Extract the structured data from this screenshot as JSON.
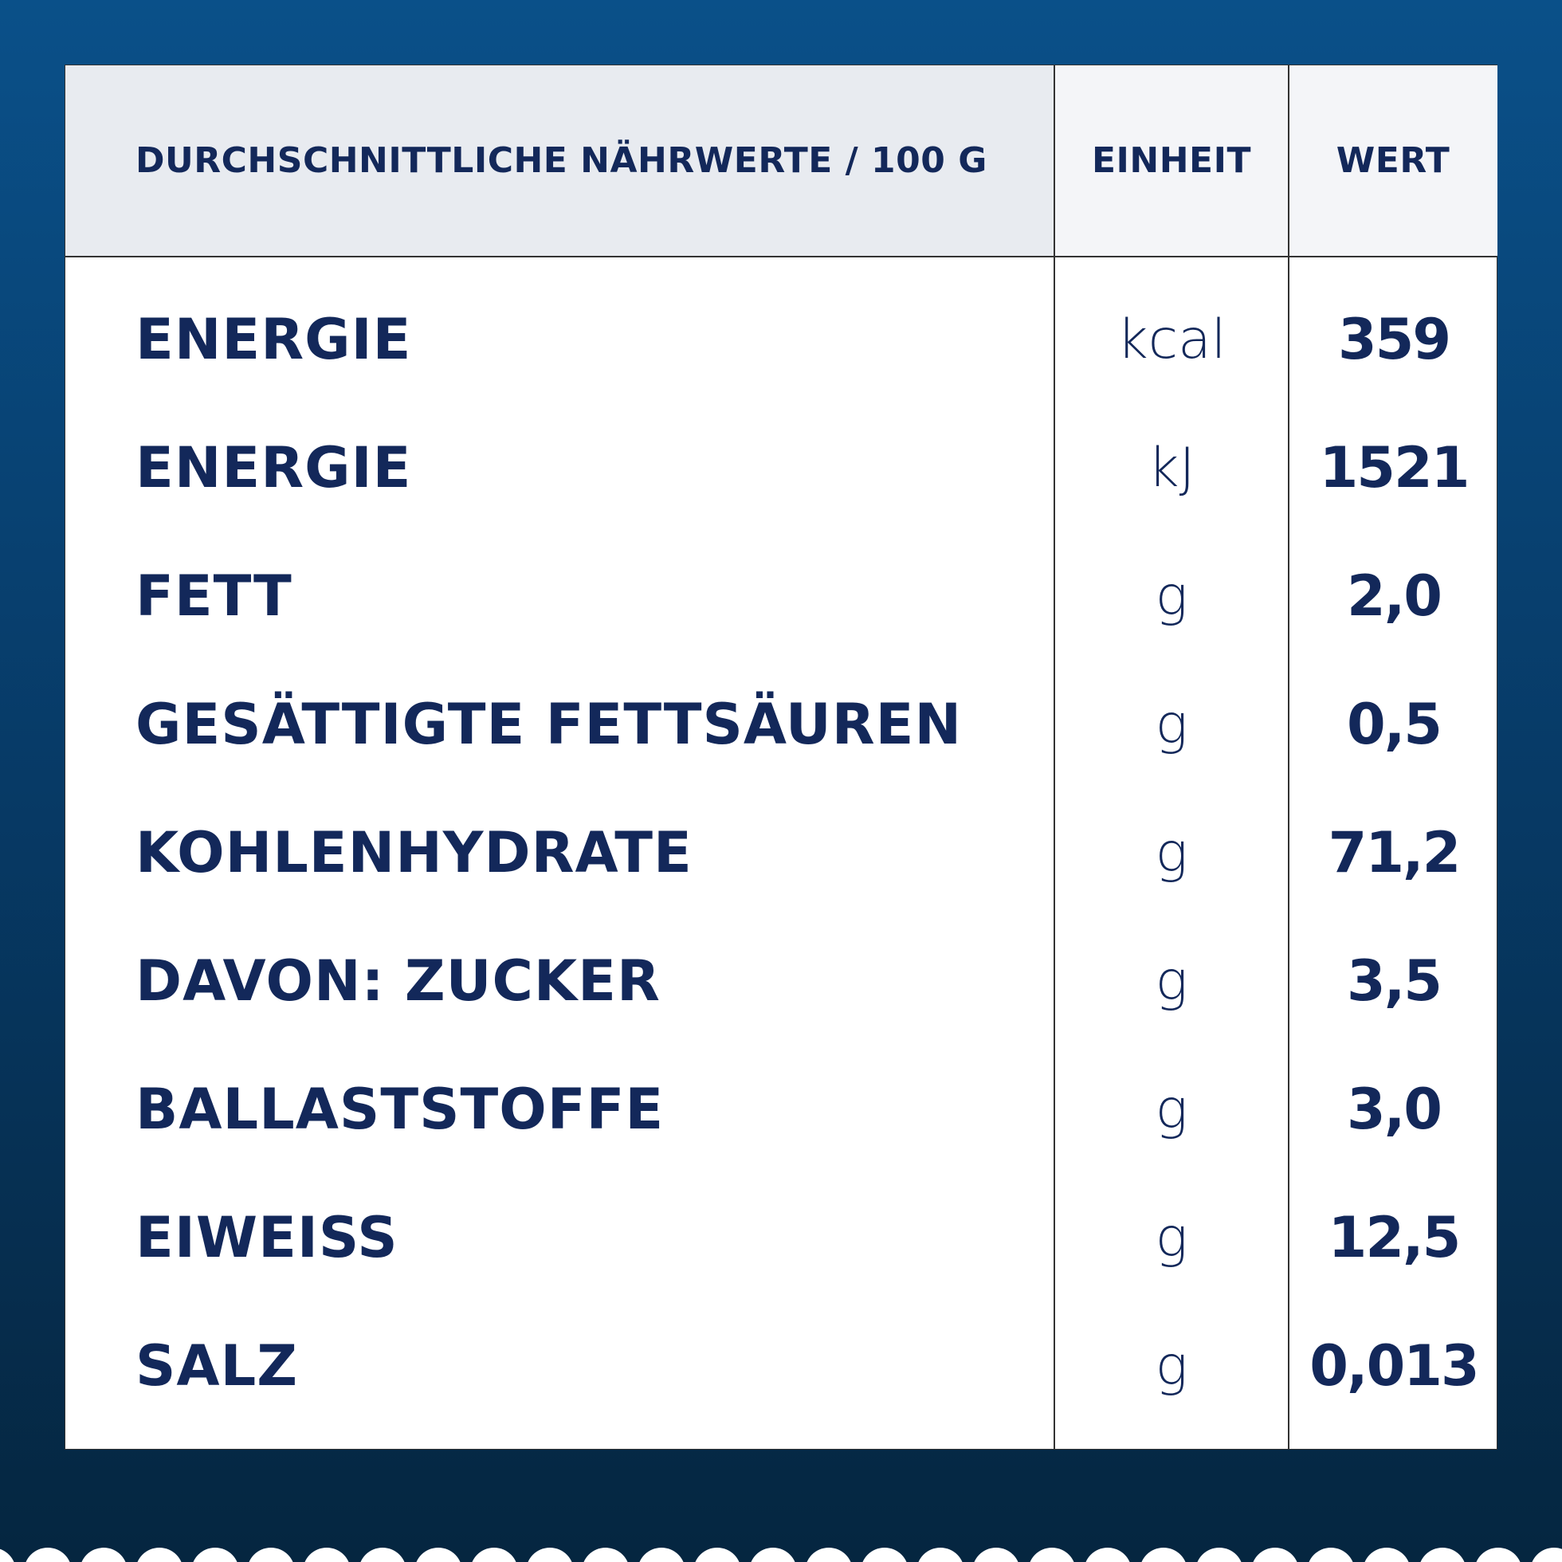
{
  "header": {
    "title": "DURCHSCHNITTLICHE NÄHRWERTE / 100 G",
    "unit": "EINHEIT",
    "value": "WERT"
  },
  "rows": [
    {
      "name": "ENERGIE",
      "unit": "kcal",
      "value": "359"
    },
    {
      "name": "ENERGIE",
      "unit": "kJ",
      "value": "1521"
    },
    {
      "name": "FETT",
      "unit": "g",
      "value": "2,0"
    },
    {
      "name": "GESÄTTIGTE FETTSÄUREN",
      "unit": "g",
      "value": "0,5"
    },
    {
      "name": "KOHLENHYDRATE",
      "unit": "g",
      "value": "71,2"
    },
    {
      "name": "DAVON: ZUCKER",
      "unit": "g",
      "value": "3,5"
    },
    {
      "name": "BALLASTSTOFFE",
      "unit": "g",
      "value": "3,0"
    },
    {
      "name": "EIWEISS",
      "unit": "g",
      "value": "12,5"
    },
    {
      "name": "SALZ",
      "unit": "g",
      "value": "0,013"
    }
  ]
}
